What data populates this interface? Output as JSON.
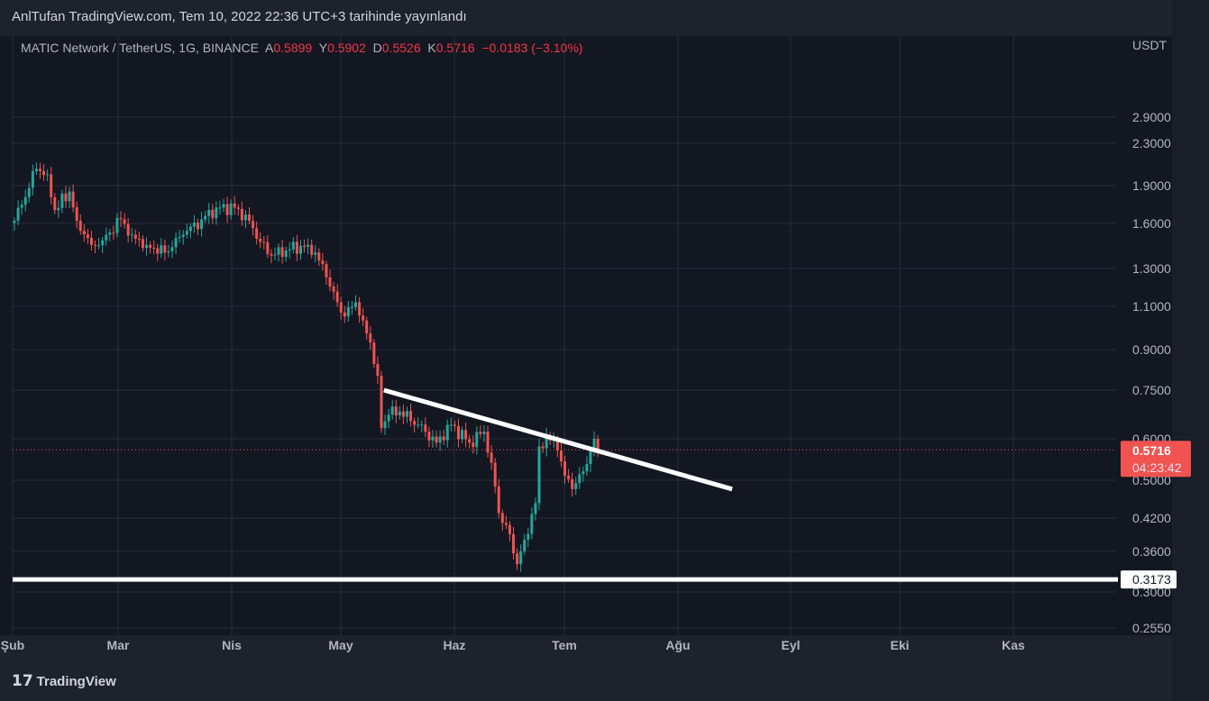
{
  "header": {
    "title": "AnlTufan TradingView.com, Tem 10, 2022 22:36 UTC+3 tarihinde yayınlandı"
  },
  "legend": {
    "symbol": "MATIC Network / TetherUS, 1G, BINANCE",
    "o_label": "A",
    "o": "0.5899",
    "h_label": "Y",
    "h": "0.5902",
    "l_label": "D",
    "l": "0.5526",
    "c_label": "K",
    "c": "0.5716",
    "change": "−0.0183 (−3.10%)"
  },
  "footer": {
    "brand": "TradingView"
  },
  "colors": {
    "up": "#26a69a",
    "down": "#ef5350",
    "bg": "#131722",
    "grid": "#2a2e39",
    "price_tag": "#f05350"
  },
  "chart_data": {
    "type": "candlestick",
    "currency": "USDT",
    "scale": "log",
    "y_ticks": [
      "2.9000",
      "2.3000",
      "1.9000",
      "1.6000",
      "1.3000",
      "1.1000",
      "0.9000",
      "0.7500",
      "0.6000",
      "0.5000",
      "0.4200",
      "0.3600",
      "0.3000",
      "0.2550"
    ],
    "x_ticks": [
      "Şub",
      "Mar",
      "Nis",
      "May",
      "Haz",
      "Tem",
      "Ağu",
      "Eyl",
      "Eki",
      "Kas"
    ],
    "close_keypoints": [
      [
        0,
        1.62
      ],
      [
        6,
        2.05
      ],
      [
        9,
        2.0
      ],
      [
        11,
        1.7
      ],
      [
        15,
        1.85
      ],
      [
        17,
        1.62
      ],
      [
        21,
        1.45
      ],
      [
        24,
        1.48
      ],
      [
        29,
        1.63
      ],
      [
        32,
        1.52
      ],
      [
        36,
        1.45
      ],
      [
        41,
        1.4
      ],
      [
        46,
        1.52
      ],
      [
        51,
        1.63
      ],
      [
        55,
        1.72
      ],
      [
        60,
        1.72
      ],
      [
        64,
        1.62
      ],
      [
        67,
        1.47
      ],
      [
        70,
        1.38
      ],
      [
        75,
        1.42
      ],
      [
        80,
        1.45
      ],
      [
        82,
        1.4
      ],
      [
        85,
        1.25
      ],
      [
        88,
        1.12
      ],
      [
        90,
        1.05
      ],
      [
        93,
        1.12
      ],
      [
        95,
        1.03
      ],
      [
        97,
        0.93
      ],
      [
        99,
        0.8
      ],
      [
        100,
        0.63
      ],
      [
        102,
        0.67
      ],
      [
        105,
        0.68
      ],
      [
        110,
        0.64
      ],
      [
        115,
        0.59
      ],
      [
        119,
        0.64
      ],
      [
        124,
        0.59
      ],
      [
        128,
        0.62
      ],
      [
        130,
        0.54
      ],
      [
        132,
        0.43
      ],
      [
        135,
        0.39
      ],
      [
        137,
        0.34
      ],
      [
        139,
        0.38
      ],
      [
        142,
        0.45
      ],
      [
        143,
        0.58
      ],
      [
        145,
        0.61
      ],
      [
        148,
        0.57
      ],
      [
        150,
        0.51
      ],
      [
        152,
        0.48
      ],
      [
        155,
        0.52
      ],
      [
        158,
        0.6
      ],
      [
        159,
        0.5716
      ]
    ],
    "last_price": "0.5716",
    "countdown": "04:23:42",
    "support_level": "0.3173",
    "trendline": {
      "start": [
        100.7,
        0.75
      ],
      "end": [
        195.6,
        0.48
      ]
    }
  }
}
